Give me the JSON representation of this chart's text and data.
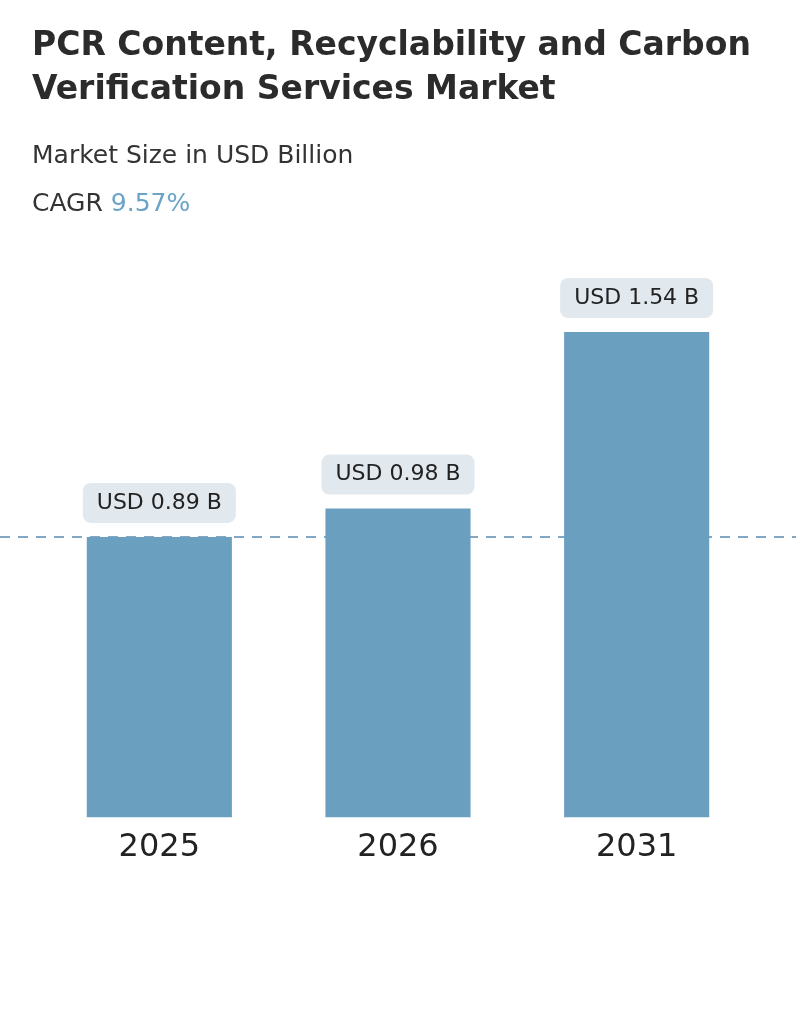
{
  "chart_data": {
    "type": "bar",
    "title": "PCR Content, Recyclability and Carbon Verification Services Market",
    "subtitle": "Market Size in USD Billion",
    "annotations": [
      "CAGR 9.57%"
    ],
    "categories": [
      "2025",
      "2026",
      "2031"
    ],
    "series": [
      {
        "color": "#6a9fc0",
        "values": [
          0.89,
          0.98,
          1.54
        ],
        "value_labels": [
          "USD 0.89 B",
          "USD 0.98 B",
          "USD 1.54 B"
        ]
      }
    ],
    "ref_lines": [
      {
        "axis": "y",
        "value": 0.89,
        "color": "#5b8bb0",
        "line_style": "dashed"
      }
    ]
  }
}
